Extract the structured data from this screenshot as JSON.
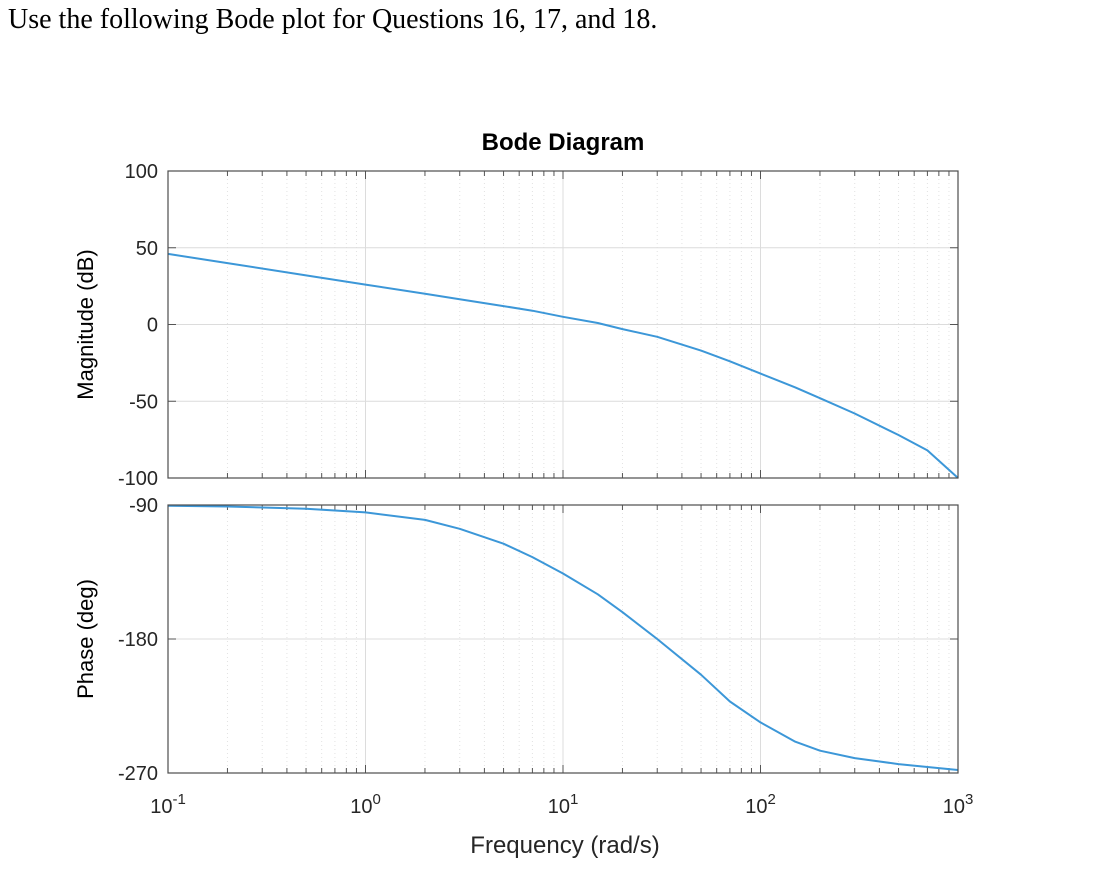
{
  "question_text": "Use the following Bode plot for Questions 16, 17, and 18.",
  "chart_data": {
    "type": "line",
    "title": "Bode Diagram",
    "xlabel": "Frequency  (rad/s)",
    "x_scale": "log",
    "xlim": [
      0.1,
      1000
    ],
    "x_tick_labels": [
      {
        "base": "10",
        "exp": "-1"
      },
      {
        "base": "10",
        "exp": "0"
      },
      {
        "base": "10",
        "exp": "1"
      },
      {
        "base": "10",
        "exp": "2"
      },
      {
        "base": "10",
        "exp": "3"
      }
    ],
    "x_tick_values": [
      0.1,
      1,
      10,
      100,
      1000
    ],
    "grid": true,
    "line_color": "#3c97d8",
    "panels": [
      {
        "name": "magnitude",
        "ylabel": "Magnitude (dB)",
        "ylim": [
          -100,
          100
        ],
        "y_ticks": [
          100,
          50,
          0,
          -50,
          -100
        ],
        "y_tick_labels": [
          "100",
          "50",
          "0",
          "-50",
          "-100"
        ],
        "series": {
          "x": [
            0.1,
            0.2,
            0.5,
            1,
            2,
            3,
            5,
            7,
            10,
            15,
            20,
            30,
            50,
            70,
            100,
            150,
            200,
            300,
            500,
            700,
            1000
          ],
          "y": [
            46,
            40,
            32,
            26,
            20,
            16.5,
            12,
            9,
            5,
            1,
            -3,
            -8,
            -17,
            -24,
            -32,
            -41,
            -48,
            -58,
            -72,
            -82,
            -100
          ]
        }
      },
      {
        "name": "phase",
        "ylabel": "Phase (deg)",
        "ylim": [
          -270,
          -90
        ],
        "y_ticks": [
          -90,
          -180,
          -270
        ],
        "y_tick_labels": [
          "-90",
          "-180",
          "-270"
        ],
        "series": {
          "x": [
            0.1,
            0.2,
            0.5,
            1,
            2,
            3,
            5,
            7,
            10,
            15,
            20,
            30,
            50,
            70,
            100,
            150,
            200,
            300,
            500,
            700,
            1000
          ],
          "y": [
            -90.5,
            -91,
            -92.5,
            -95,
            -100,
            -106,
            -116,
            -125,
            -136,
            -150,
            -162,
            -180,
            -204,
            -222,
            -236,
            -249,
            -255,
            -260,
            -264,
            -266,
            -268
          ]
        }
      }
    ]
  }
}
